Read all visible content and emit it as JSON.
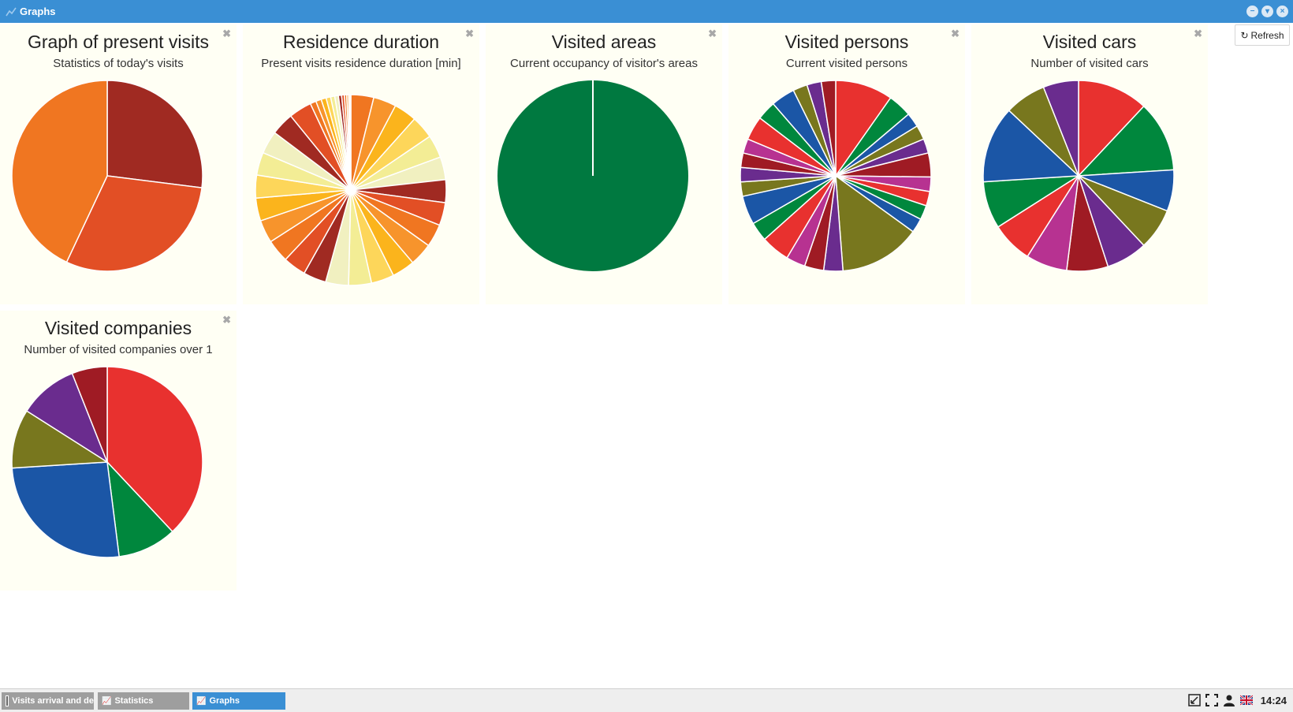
{
  "window": {
    "title": "Graphs",
    "refresh_label": "Refresh"
  },
  "colors": {
    "titlebar": "#3a8fd4",
    "panel_bg": "#fffff4"
  },
  "charts": [
    {
      "key": "present",
      "title": "Graph of present visits",
      "subtitle": "Statistics of today's visits",
      "chart_data": {
        "type": "pie",
        "values": [
          27,
          30,
          43
        ],
        "colors": [
          "#a02a22",
          "#e24f25",
          "#f07621"
        ]
      }
    },
    {
      "key": "residence",
      "title": "Residence duration",
      "subtitle": "Present visits residence duration [min]",
      "chart_data": {
        "type": "pie",
        "values": [
          5,
          5,
          5,
          5,
          5,
          5,
          5,
          5,
          5,
          5,
          5,
          5,
          5,
          5,
          5,
          5,
          5,
          5,
          5,
          5,
          5,
          5,
          5,
          5,
          1.3,
          1.2,
          1.1,
          1,
          0.9,
          0.8,
          0.7,
          0.6,
          0.5,
          0.4,
          0.3,
          0.2
        ],
        "colors": [
          "#f07621",
          "#f7942c",
          "#fbb41c",
          "#fdd65a",
          "#f3ed95",
          "#f1f0c0",
          "#a02a22",
          "#e24f25",
          "#f07621",
          "#f7942c",
          "#fbb41c",
          "#fdd65a",
          "#f3ed95",
          "#f1f0c0",
          "#a02a22",
          "#e24f25",
          "#f07621",
          "#f7942c",
          "#fbb41c",
          "#fdd65a",
          "#f3ed95",
          "#f1f0c0",
          "#a02a22",
          "#e24f25",
          "#f07621",
          "#f7942c",
          "#fbb41c",
          "#fdd65a",
          "#f3ed95",
          "#f1f0c0",
          "#a02a22",
          "#e24f25",
          "#f07621",
          "#f7942c",
          "#fbb41c",
          "#fdd65a"
        ]
      }
    },
    {
      "key": "areas",
      "title": "Visited areas",
      "subtitle": "Current occupancy of visitor's areas",
      "chart_data": {
        "type": "pie",
        "values": [
          100
        ],
        "colors": [
          "#007940"
        ]
      }
    },
    {
      "key": "persons",
      "title": "Visited persons",
      "subtitle": "Current visited persons",
      "chart_data": {
        "type": "pie",
        "values": [
          12,
          5,
          3,
          3,
          3,
          5,
          3,
          3,
          3,
          3,
          17,
          4,
          4,
          4,
          6,
          4,
          6,
          3,
          3,
          3,
          3,
          5,
          4,
          5,
          3,
          3,
          3
        ],
        "colors": [
          "#e8312f",
          "#00873d",
          "#1b56a6",
          "#78771e",
          "#6a2c8e",
          "#9f1b24",
          "#b73291",
          "#e8312f",
          "#00873d",
          "#1b56a6",
          "#78771e",
          "#6a2c8e",
          "#9f1b24",
          "#b73291",
          "#e8312f",
          "#00873d",
          "#1b56a6",
          "#78771e",
          "#6a2c8e",
          "#9f1b24",
          "#b73291",
          "#e8312f",
          "#00873d",
          "#1b56a6",
          "#78771e",
          "#6a2c8e",
          "#9f1b24"
        ]
      }
    },
    {
      "key": "cars",
      "title": "Visited cars",
      "subtitle": "Number of visited cars",
      "chart_data": {
        "type": "pie",
        "values": [
          12,
          12,
          7,
          7,
          7,
          7,
          7,
          7,
          8,
          13,
          7,
          6
        ],
        "colors": [
          "#e8312f",
          "#00873d",
          "#1b56a6",
          "#78771e",
          "#6a2c8e",
          "#9f1b24",
          "#b73291",
          "#e8312f",
          "#00873d",
          "#1b56a6",
          "#78771e",
          "#6a2c8e"
        ]
      }
    },
    {
      "key": "companies",
      "title": "Visited companies",
      "subtitle": "Number of visited companies over 1",
      "chart_data": {
        "type": "pie",
        "values": [
          38,
          10,
          26,
          10,
          10,
          6
        ],
        "colors": [
          "#e8312f",
          "#00873d",
          "#1b56a6",
          "#78771e",
          "#6a2c8e",
          "#9f1b24"
        ]
      }
    }
  ],
  "taskbar": {
    "items": [
      {
        "label": "Visits arrival and de"
      },
      {
        "label": "Statistics"
      },
      {
        "label": "Graphs"
      }
    ],
    "clock": "14:24"
  }
}
